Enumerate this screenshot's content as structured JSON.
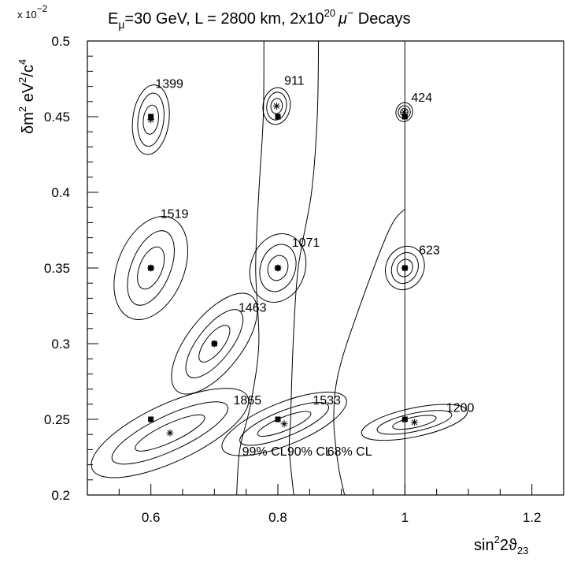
{
  "chart_data": {
    "type": "scatter",
    "title": "E_μ=30 GeV, L = 2800 km, 2x10^20 μ^- Decays",
    "title_parts": {
      "e": "E",
      "e_sub": "μ",
      "rest": "=30 GeV, L = 2800 km, 2x10",
      "exp": "20",
      "mu": "μ",
      "mu_sup": "−",
      "decays": " Decays"
    },
    "xlabel_parts": {
      "sin": "sin",
      "sup": "2",
      "theta": "2ϑ",
      "sub": "23"
    },
    "ylabel_parts": {
      "delta": "δm",
      "sup1": "2",
      "ev": " eV",
      "sup2": "2",
      "c": "/c",
      "sup3": "4"
    },
    "y_multiplier": {
      "x": "x 10",
      "exp": "−2"
    },
    "xlim": [
      0.5,
      1.25
    ],
    "ylim": [
      0.2,
      0.5
    ],
    "x_ticks": [
      "0.6",
      "0.8",
      "1",
      "1.2"
    ],
    "x_tick_values": [
      0.6,
      0.8,
      1.0,
      1.2
    ],
    "y_ticks": [
      "0.2",
      "0.25",
      "0.3",
      "0.35",
      "0.4",
      "0.45",
      "0.5"
    ],
    "y_tick_values": [
      0.2,
      0.25,
      0.3,
      0.35,
      0.4,
      0.45,
      0.5
    ],
    "grid": false,
    "fit_points": [
      {
        "label": "1399",
        "x": 0.6,
        "y": 0.45,
        "fit_x": 0.6,
        "fit_y": 0.448,
        "label_x": 0.607,
        "label_y": 0.469,
        "angle": -83,
        "sizes": [
          [
            0.055,
            0.012
          ],
          [
            0.042,
            0.0085
          ],
          [
            0.023,
            0.005
          ]
        ]
      },
      {
        "label": "911",
        "x": 0.8,
        "y": 0.45,
        "fit_x": 0.798,
        "fit_y": 0.457,
        "label_x": 0.81,
        "label_y": 0.471,
        "angle": -82,
        "sizes": [
          [
            0.029,
            0.009
          ],
          [
            0.022,
            0.0065
          ],
          [
            0.012,
            0.0038
          ]
        ]
      },
      {
        "label": "424",
        "x": 1.0,
        "y": 0.45,
        "fit_x": 0.999,
        "fit_y": 0.453,
        "label_x": 1.01,
        "label_y": 0.46,
        "angle": -78,
        "sizes": [
          [
            0.015,
            0.0055
          ],
          [
            0.01,
            0.004
          ],
          [
            0.006,
            0.0025
          ]
        ]
      },
      {
        "label": "1519",
        "x": 0.6,
        "y": 0.35,
        "fit_x": 0.6,
        "fit_y": 0.35,
        "label_x": 0.615,
        "label_y": 0.383,
        "angle": -68,
        "sizes": [
          [
            0.085,
            0.022
          ],
          [
            0.062,
            0.013
          ],
          [
            0.035,
            0.0075
          ]
        ]
      },
      {
        "label": "1071",
        "x": 0.8,
        "y": 0.35,
        "fit_x": 0.8,
        "fit_y": 0.35,
        "label_x": 0.822,
        "label_y": 0.364,
        "angle": -72,
        "sizes": [
          [
            0.055,
            0.018
          ],
          [
            0.038,
            0.0115
          ],
          [
            0.02,
            0.0065
          ]
        ]
      },
      {
        "label": "623",
        "x": 1.0,
        "y": 0.35,
        "fit_x": 1.0,
        "fit_y": 0.35,
        "label_x": 1.022,
        "label_y": 0.359,
        "angle": -65,
        "sizes": [
          [
            0.035,
            0.0125
          ],
          [
            0.025,
            0.0085
          ],
          [
            0.014,
            0.005
          ]
        ]
      },
      {
        "label": "1463",
        "x": 0.7,
        "y": 0.3,
        "fit_x": 0.7,
        "fit_y": 0.3,
        "label_x": 0.738,
        "label_y": 0.321,
        "angle": -52,
        "sizes": [
          [
            0.095,
            0.018
          ],
          [
            0.065,
            0.011
          ],
          [
            0.035,
            0.006
          ]
        ]
      },
      {
        "label": "1865",
        "x": 0.6,
        "y": 0.25,
        "fit_x": 0.63,
        "fit_y": 0.241,
        "label_x": 0.73,
        "label_y": 0.26,
        "angle": -25,
        "sizes": [
          [
            0.135,
            0.019
          ],
          [
            0.1,
            0.0115
          ],
          [
            0.06,
            0.006
          ]
        ]
      },
      {
        "label": "1533",
        "x": 0.8,
        "y": 0.25,
        "fit_x": 0.81,
        "fit_y": 0.247,
        "label_x": 0.855,
        "label_y": 0.26,
        "angle": -22,
        "sizes": [
          [
            0.105,
            0.014
          ],
          [
            0.075,
            0.0085
          ],
          [
            0.045,
            0.0045
          ]
        ]
      },
      {
        "label": "1200",
        "x": 1.0,
        "y": 0.25,
        "fit_x": 1.015,
        "fit_y": 0.248,
        "label_x": 1.065,
        "label_y": 0.255,
        "angle": -12,
        "sizes": [
          [
            0.085,
            0.0095
          ],
          [
            0.06,
            0.006
          ],
          [
            0.035,
            0.0035
          ]
        ]
      }
    ],
    "cl_labels": [
      {
        "text": "99% CL",
        "x": 0.779,
        "y": 0.226
      },
      {
        "text": "90% CL",
        "x": 0.85,
        "y": 0.226
      },
      {
        "text": "68% CL",
        "x": 0.913,
        "y": 0.226
      }
    ],
    "boundary_curves": [
      {
        "id": "curve-99",
        "points": [
          [
            0.778,
            0.5
          ],
          [
            0.777,
            0.45
          ],
          [
            0.77,
            0.4
          ],
          [
            0.765,
            0.35
          ],
          [
            0.77,
            0.3
          ],
          [
            0.757,
            0.26
          ],
          [
            0.74,
            0.23
          ],
          [
            0.735,
            0.2
          ]
        ]
      },
      {
        "id": "curve-90",
        "points": [
          [
            0.864,
            0.5
          ],
          [
            0.862,
            0.45
          ],
          [
            0.853,
            0.4
          ],
          [
            0.832,
            0.35
          ],
          [
            0.824,
            0.3
          ],
          [
            0.82,
            0.25
          ],
          [
            0.818,
            0.23
          ],
          [
            0.825,
            0.2
          ]
        ]
      },
      {
        "id": "curve-68",
        "points": [
          [
            1.0,
            0.389
          ],
          [
            0.975,
            0.375
          ],
          [
            0.925,
            0.32
          ],
          [
            0.895,
            0.28
          ],
          [
            0.888,
            0.25
          ],
          [
            0.895,
            0.22
          ],
          [
            0.905,
            0.2
          ]
        ]
      },
      {
        "id": "vertical-line",
        "points": [
          [
            1.0,
            0.5
          ],
          [
            1.0,
            0.2
          ]
        ]
      }
    ]
  }
}
